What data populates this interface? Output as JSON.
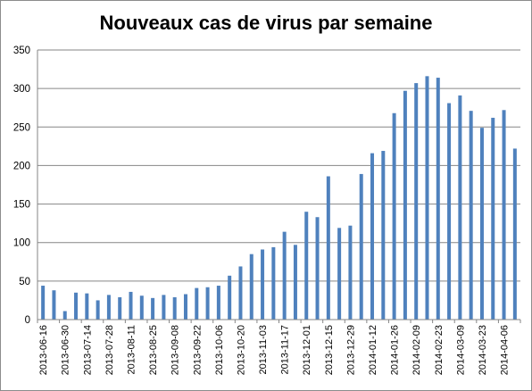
{
  "chart_data": {
    "type": "bar",
    "title": "Nouveaux cas de virus par semaine",
    "xlabel": "",
    "ylabel": "",
    "ylim": [
      0,
      350
    ],
    "yticks": [
      0,
      50,
      100,
      150,
      200,
      250,
      300,
      350
    ],
    "grid": true,
    "legend": "none",
    "bar_color": "#4F81BD",
    "categories": [
      "2013-06-16",
      "2013-06-23",
      "2013-06-30",
      "2013-07-07",
      "2013-07-14",
      "2013-07-21",
      "2013-07-28",
      "2013-08-04",
      "2013-08-11",
      "2013-08-18",
      "2013-08-25",
      "2013-09-01",
      "2013-09-08",
      "2013-09-15",
      "2013-09-22",
      "2013-09-29",
      "2013-10-06",
      "2013-10-13",
      "2013-10-20",
      "2013-10-27",
      "2013-11-03",
      "2013-11-10",
      "2013-11-17",
      "2013-11-24",
      "2013-12-01",
      "2013-12-08",
      "2013-12-15",
      "2013-12-22",
      "2013-12-29",
      "2014-01-05",
      "2014-01-12",
      "2014-01-19",
      "2014-01-26",
      "2014-02-02",
      "2014-02-09",
      "2014-02-16",
      "2014-02-23",
      "2014-03-02",
      "2014-03-09",
      "2014-03-16",
      "2014-03-23",
      "2014-03-30",
      "2014-04-06",
      "2014-04-13"
    ],
    "tick_labels": [
      "2013-06-16",
      "2013-06-30",
      "2013-07-14",
      "2013-07-28",
      "2013-08-11",
      "2013-08-25",
      "2013-09-08",
      "2013-09-22",
      "2013-10-06",
      "2013-10-20",
      "2013-11-03",
      "2013-11-17",
      "2013-12-01",
      "2013-12-15",
      "2013-12-29",
      "2014-01-12",
      "2014-01-26",
      "2014-02-09",
      "2014-02-23",
      "2014-03-09",
      "2014-03-23",
      "2014-04-06"
    ],
    "values": [
      44,
      38,
      11,
      35,
      34,
      25,
      32,
      29,
      36,
      31,
      28,
      32,
      29,
      33,
      41,
      42,
      44,
      57,
      69,
      85,
      91,
      94,
      114,
      97,
      140,
      133,
      186,
      119,
      122,
      189,
      216,
      219,
      268,
      297,
      307,
      316,
      314,
      281,
      291,
      271,
      249,
      262,
      272,
      222
    ]
  }
}
